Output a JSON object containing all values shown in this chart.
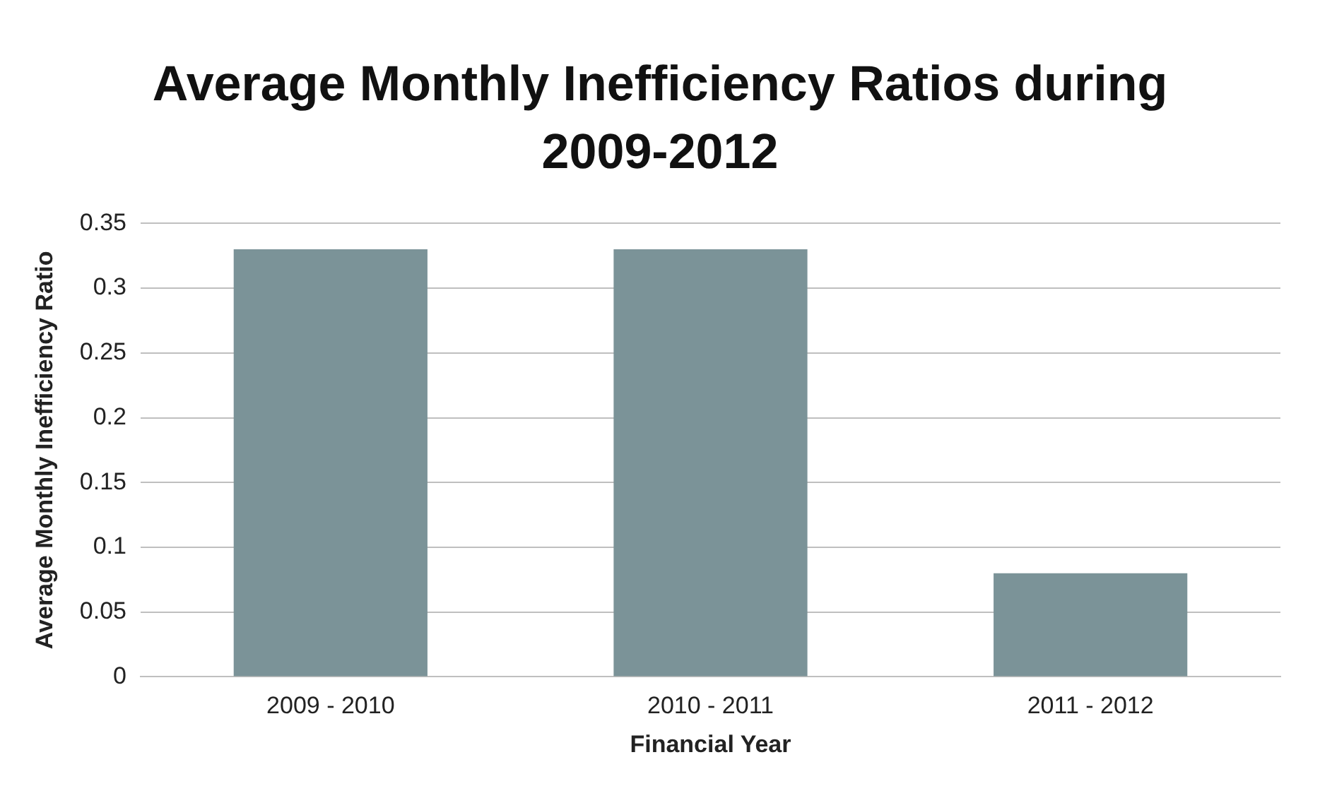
{
  "chart_data": {
    "type": "bar",
    "title": "Average Monthly Inefficiency Ratios during 2009-2012",
    "xlabel": "Financial Year",
    "ylabel": "Average Monthly Inefficiency Ratio",
    "categories": [
      "2009 - 2010",
      "2010 - 2011",
      "2011 - 2012"
    ],
    "values": [
      0.33,
      0.33,
      0.08
    ],
    "color": "#7b9398",
    "ylim": [
      0,
      0.35
    ],
    "yticks": [
      0,
      0.05,
      0.1,
      0.15,
      0.2,
      0.25,
      0.3,
      0.35
    ],
    "grid": "y",
    "legend": false
  }
}
